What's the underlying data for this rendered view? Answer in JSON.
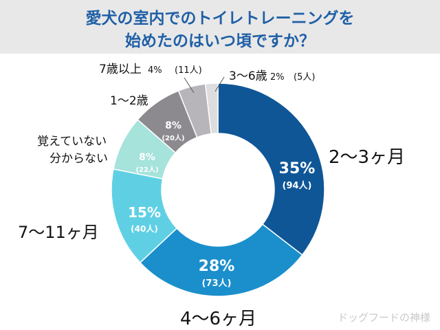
{
  "title": {
    "line1": "愛犬の室内でのトイレトレーニングを",
    "line2": "始めたのはいつ頃ですか？"
  },
  "watermark": "ドッグフードの神様",
  "chart_data": {
    "type": "pie",
    "donut": true,
    "slices": [
      {
        "label": "2〜3ヶ月",
        "percent": "35%",
        "count": "(94人)",
        "value": 94,
        "color": "#0f5697"
      },
      {
        "label": "4〜6ヶ月",
        "percent": "28%",
        "count": "(73人)",
        "value": 73,
        "color": "#1b8fcc"
      },
      {
        "label": "7〜11ヶ月",
        "percent": "15%",
        "count": "(40人)",
        "value": 40,
        "color": "#5fd0e4"
      },
      {
        "label_lines": [
          "覚えていない",
          "分からない"
        ],
        "percent": "8%",
        "count": "(22人)",
        "value": 22,
        "color": "#a5e3db"
      },
      {
        "label": "1〜2歳",
        "percent": "8%",
        "count": "(20人)",
        "value": 20,
        "color": "#8c8a8e"
      },
      {
        "label": "7歳以上",
        "percent": "4%",
        "count": "(11人)",
        "value": 11,
        "color": "#b7b5b9"
      },
      {
        "label": "3〜6歳",
        "percent": "2%",
        "count": "(5人)",
        "value": 5,
        "color": "#dddcde"
      }
    ]
  }
}
